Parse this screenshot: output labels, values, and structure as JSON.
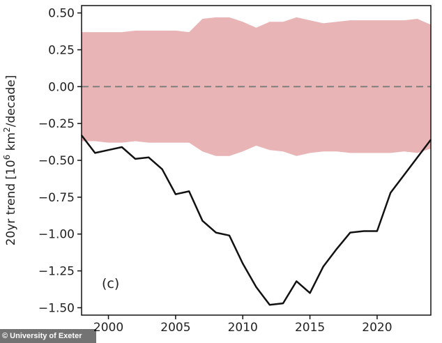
{
  "chart_data": {
    "type": "line",
    "panel_label": "(c)",
    "ylabel_main": "20yr trend [10",
    "ylabel_sup1": "6",
    "ylabel_mid": " km",
    "ylabel_sup2": "2",
    "ylabel_end": "/decade]",
    "xlim": [
      1998,
      2024
    ],
    "ylim": [
      -1.55,
      0.55
    ],
    "x_ticks": [
      2000,
      2005,
      2010,
      2015,
      2020
    ],
    "x_tick_labels": [
      "2000",
      "2005",
      "2010",
      "2015",
      "2020"
    ],
    "y_ticks": [
      0.5,
      0.25,
      0.0,
      -0.25,
      -0.5,
      -0.75,
      -1.0,
      -1.25,
      -1.5
    ],
    "y_tick_labels": [
      "0.50",
      "0.25",
      "0.00",
      "−0.25",
      "−0.50",
      "−0.75",
      "−1.00",
      "−1.25",
      "−1.50"
    ],
    "zero_line": 0.0,
    "series": [
      {
        "x": [
          1998,
          1999,
          2000,
          2001,
          2002,
          2003,
          2004,
          2005,
          2006,
          2007,
          2008,
          2009,
          2010,
          2011,
          2012,
          2013,
          2014,
          2015,
          2016,
          2017,
          2018,
          2019,
          2020,
          2021,
          2022,
          2023,
          2024
        ],
        "values": [
          -0.33,
          -0.45,
          -0.43,
          -0.41,
          -0.49,
          -0.48,
          -0.56,
          -0.73,
          -0.71,
          -0.91,
          -0.99,
          -1.01,
          -1.2,
          -1.36,
          -1.48,
          -1.47,
          -1.32,
          -1.4,
          -1.22,
          -1.1,
          -0.99,
          -0.98,
          -0.98,
          -0.72,
          -0.6,
          -0.48,
          -0.36
        ]
      }
    ],
    "band": {
      "x": [
        1998,
        1999,
        2000,
        2001,
        2002,
        2003,
        2004,
        2005,
        2006,
        2007,
        2008,
        2009,
        2010,
        2011,
        2012,
        2013,
        2014,
        2015,
        2016,
        2017,
        2018,
        2019,
        2020,
        2021,
        2022,
        2023,
        2024
      ],
      "upper": [
        0.37,
        0.37,
        0.37,
        0.37,
        0.38,
        0.38,
        0.38,
        0.38,
        0.37,
        0.46,
        0.47,
        0.47,
        0.44,
        0.4,
        0.44,
        0.44,
        0.47,
        0.45,
        0.43,
        0.44,
        0.45,
        0.45,
        0.45,
        0.45,
        0.45,
        0.46,
        0.42
      ],
      "lower": [
        -0.37,
        -0.37,
        -0.38,
        -0.38,
        -0.37,
        -0.38,
        -0.38,
        -0.38,
        -0.38,
        -0.44,
        -0.47,
        -0.47,
        -0.44,
        -0.4,
        -0.43,
        -0.44,
        -0.47,
        -0.45,
        -0.44,
        -0.44,
        -0.45,
        -0.45,
        -0.45,
        -0.45,
        -0.44,
        -0.45,
        -0.42
      ]
    },
    "colors": {
      "band": "#e8b4b6",
      "line": "#111111",
      "zero_line": "#7f7f7f",
      "axes": "#111111"
    }
  },
  "credit_text": "© University of Exeter"
}
